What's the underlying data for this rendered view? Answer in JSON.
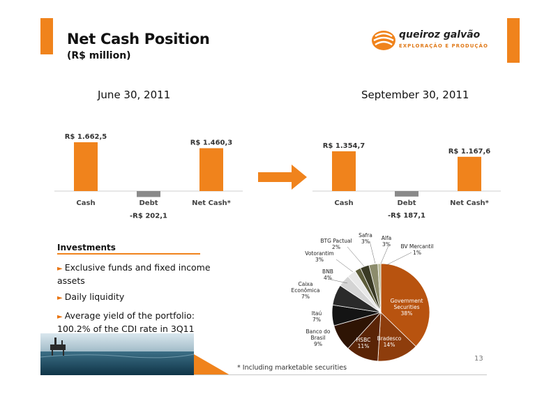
{
  "header": {
    "title": "Net Cash Position",
    "subtitle": "(R$ million)"
  },
  "logo": {
    "name": "queiroz galvão",
    "tagline": "EXPLORAÇÃO E PRODUÇÃO"
  },
  "colors": {
    "accent": "#f0831c",
    "bar_positive": "#f0831c",
    "bar_negative": "#8a8a8a"
  },
  "chart_data": [
    {
      "type": "bar",
      "title": "June 30, 2011",
      "categories": [
        "Cash",
        "Debt",
        "Net Cash*"
      ],
      "values": [
        1662.5,
        -202.1,
        1460.3
      ],
      "value_labels": [
        "R$ 1.662,5",
        "-R$ 202,1",
        "R$ 1.460,3"
      ]
    },
    {
      "type": "bar",
      "title": "September 30, 2011",
      "categories": [
        "Cash",
        "Debt",
        "Net Cash*"
      ],
      "values": [
        1354.7,
        -187.1,
        1167.6
      ],
      "value_labels": [
        "R$ 1.354,7",
        "-R$ 187,1",
        "R$ 1.167,6"
      ]
    },
    {
      "type": "pie",
      "slices": [
        {
          "label": "Government Securities",
          "value": 38,
          "display": "38%",
          "color": "#b8530f"
        },
        {
          "label": "Bradesco",
          "value": 14,
          "display": "14%",
          "color": "#8e3d0c"
        },
        {
          "label": "HSBC",
          "value": 11,
          "display": "11%",
          "color": "#5a2406"
        },
        {
          "label": "Banco do Brasil",
          "value": 9,
          "display": "9%",
          "color": "#2e1404"
        },
        {
          "label": "Itaú",
          "value": 7,
          "display": "7%",
          "color": "#141414"
        },
        {
          "label": "Caixa Econômica",
          "value": 7,
          "display": "7%",
          "color": "#2a2a2a"
        },
        {
          "label": "BNB",
          "value": 4,
          "display": "4%",
          "color": "#d4d4d4"
        },
        {
          "label": "Votorantim",
          "value": 3,
          "display": "3%",
          "color": "#e8e8e8"
        },
        {
          "label": "BTG Pactual",
          "value": 2,
          "display": "2%",
          "color": "#5c5c3a"
        },
        {
          "label": "Safra",
          "value": 3,
          "display": "3%",
          "color": "#3a3a24"
        },
        {
          "label": "Alfa",
          "value": 3,
          "display": "3%",
          "color": "#8c8c6c"
        },
        {
          "label": "BV Mercantil",
          "value": 1,
          "display": "1%",
          "color": "#bcbc9a"
        }
      ]
    }
  ],
  "investments": {
    "title": "Investments",
    "bullets": [
      "Exclusive funds and fixed income assets",
      "Daily liquidity",
      "Average yield of the portfolio: 100.2% of the CDI rate in 3Q11"
    ]
  },
  "footnote": "* Including marketable securities",
  "page_number": "13",
  "icons": {
    "arrow": "right-arrow-icon",
    "bullet": "triangle-bullet-icon"
  }
}
